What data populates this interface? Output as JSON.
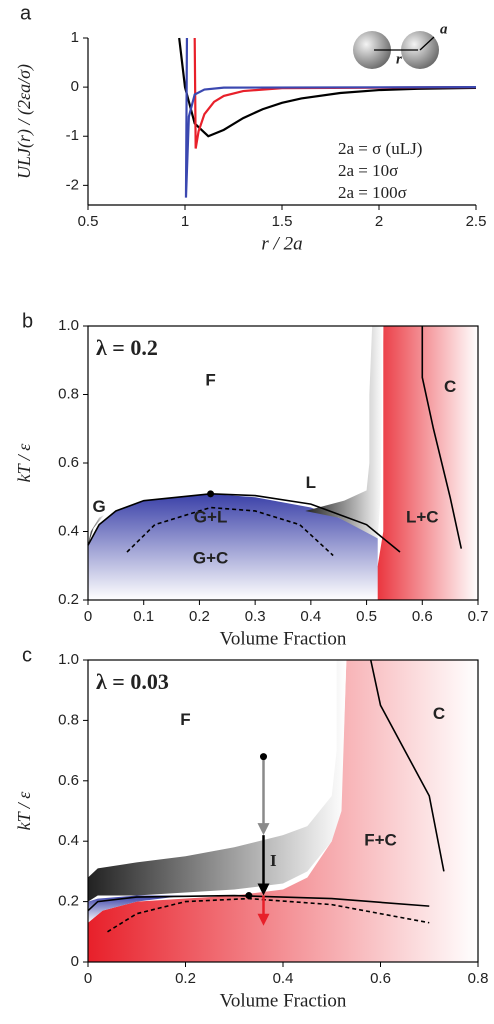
{
  "chart_data": [
    {
      "type": "line",
      "panel": "a",
      "xlabel": "r / 2a",
      "ylabel": "ULJ(r) / (2εa/σ)",
      "xlim": [
        0.5,
        2.5
      ],
      "xticks": [
        0.5,
        1,
        1.5,
        2,
        2.5
      ],
      "ylim": [
        -2.4,
        1
      ],
      "yticks": [
        1,
        0,
        -1,
        -2
      ],
      "inset_labels": [
        "r",
        "a"
      ],
      "series": [
        {
          "name": "2a = σ (uLJ)",
          "color": "#000000",
          "x": [
            0.97,
            1.0,
            1.05,
            1.12,
            1.2,
            1.3,
            1.4,
            1.5,
            1.6,
            1.8,
            2.0,
            2.2,
            2.5
          ],
          "y": [
            1.0,
            0,
            -0.74,
            -1.0,
            -0.87,
            -0.63,
            -0.45,
            -0.32,
            -0.23,
            -0.12,
            -0.06,
            -0.035,
            -0.016
          ]
        },
        {
          "name": "2a = 10σ",
          "color": "#e8202a",
          "x": [
            1.05,
            1.055,
            1.07,
            1.1,
            1.15,
            1.2,
            1.3,
            1.5,
            2.5
          ],
          "y": [
            1.0,
            -1.25,
            -0.9,
            -0.55,
            -0.3,
            -0.18,
            -0.08,
            -0.02,
            0
          ]
        },
        {
          "name": "2a = 100σ",
          "color": "#3b48b0",
          "x": [
            1.01,
            1.005,
            1.02,
            1.05,
            1.1,
            1.2,
            2.5
          ],
          "y": [
            1.0,
            -2.25,
            -0.6,
            -0.15,
            -0.05,
            -0.01,
            0
          ]
        }
      ]
    },
    {
      "type": "phase",
      "panel": "b",
      "lambda_label": "λ = 0.2",
      "xlabel": "Volume Fraction",
      "ylabel": "kT / ε",
      "xlim": [
        0,
        0.7
      ],
      "xticks": [
        0,
        0.1,
        0.2,
        0.3,
        0.4,
        0.5,
        0.6,
        0.7
      ],
      "ylim": [
        0.2,
        1
      ],
      "yticks": [
        0.2,
        0.4,
        0.6,
        0.8,
        {
          "value": 1,
          "label": "1.0"
        }
      ],
      "annotations": [
        "F",
        "G",
        "L",
        "G+L",
        "G+C",
        "L+C",
        "C"
      ],
      "regions": [
        {
          "color": "#e8202a",
          "fade": "right",
          "x": [
            0.5,
            0.5,
            0.52,
            0.53,
            0.53,
            0.7,
            0.7
          ],
          "y": [
            0.2,
            0.25,
            0.3,
            0.4,
            1.0,
            1.0,
            0.2
          ]
        },
        {
          "color": "#3a40a8",
          "fade": "down",
          "x": [
            0,
            0,
            0.02,
            0.05,
            0.1,
            0.22,
            0.3,
            0.4,
            0.45,
            0.5,
            0.52,
            0.52
          ],
          "y": [
            0.2,
            0.36,
            0.42,
            0.46,
            0.49,
            0.51,
            0.5,
            0.47,
            0.44,
            0.4,
            0.38,
            0.2
          ]
        },
        {
          "color": "#222222",
          "fade": "right",
          "x": [
            0.39,
            0.46,
            0.5,
            0.505,
            0.505,
            0.51,
            0.53,
            0.525,
            0.52,
            0.45
          ],
          "y": [
            0.46,
            0.49,
            0.52,
            0.6,
            0.8,
            1.0,
            1.0,
            0.5,
            0.38,
            0.44
          ]
        },
        {
          "color": "#222222",
          "fade": "right",
          "x": [
            0,
            0.005,
            0.02,
            0.03,
            0.01
          ],
          "y": [
            0.36,
            0.4,
            0.44,
            0.45,
            0.41
          ]
        }
      ],
      "curves": [
        {
          "color": "#000000",
          "dashed": false,
          "x": [
            0,
            0.02,
            0.05,
            0.1,
            0.22,
            0.3,
            0.4,
            0.5,
            0.56
          ],
          "y": [
            0.36,
            0.42,
            0.46,
            0.49,
            0.51,
            0.505,
            0.48,
            0.42,
            0.34
          ]
        },
        {
          "color": "#000000",
          "dashed": true,
          "x": [
            0.07,
            0.12,
            0.22,
            0.3,
            0.38,
            0.44
          ],
          "y": [
            0.34,
            0.42,
            0.47,
            0.46,
            0.42,
            0.33
          ]
        },
        {
          "color": "#000000",
          "dashed": false,
          "x": [
            0.6,
            0.6,
            0.62,
            0.65,
            0.67
          ],
          "y": [
            1.0,
            0.85,
            0.7,
            0.5,
            0.35
          ]
        }
      ],
      "points": {
        "x": [
          0.22
        ],
        "y": [
          0.51
        ]
      },
      "arrows": []
    },
    {
      "type": "phase",
      "panel": "c",
      "lambda_label": "λ = 0.03",
      "xlabel": "Volume Fraction",
      "ylabel": "kT / ε",
      "xlim": [
        0,
        0.8
      ],
      "xticks": [
        0,
        0.2,
        0.4,
        0.6,
        0.8
      ],
      "ylim": [
        0,
        1
      ],
      "yticks": [
        0,
        0.2,
        0.4,
        0.6,
        0.8,
        {
          "value": 1,
          "label": "1.0"
        }
      ],
      "annotations": [
        "F",
        "C",
        "F+C",
        "I"
      ],
      "regions": [
        {
          "color": "#e8202a",
          "fade": "right",
          "x": [
            0.53,
            0.8,
            0.8,
            0,
            0,
            0.03,
            0.1,
            0.3,
            0.4,
            0.45,
            0.5,
            0.52
          ],
          "y": [
            1.0,
            1.0,
            0,
            0,
            0.13,
            0.17,
            0.2,
            0.22,
            0.24,
            0.28,
            0.4,
            0.55
          ]
        },
        {
          "color": "#3a40a8",
          "fade": "down",
          "x": [
            0,
            0,
            0.02,
            0.1,
            0.2,
            0.1,
            0.03
          ],
          "y": [
            0.13,
            0.2,
            0.21,
            0.22,
            0.22,
            0.2,
            0.17
          ]
        },
        {
          "color": "#222222",
          "fade": "right",
          "x": [
            0,
            0.02,
            0.1,
            0.2,
            0.3,
            0.4,
            0.45,
            0.5,
            0.51,
            0.51,
            0.53,
            0.52,
            0.5,
            0.45,
            0.4,
            0.3,
            0.2,
            0.1,
            0.02,
            0
          ],
          "y": [
            0.28,
            0.31,
            0.33,
            0.35,
            0.38,
            0.42,
            0.45,
            0.55,
            0.7,
            1.0,
            1.0,
            0.5,
            0.4,
            0.3,
            0.26,
            0.24,
            0.23,
            0.22,
            0.22,
            0.2
          ]
        }
      ],
      "curves": [
        {
          "color": "#000000",
          "dashed": false,
          "x": [
            0,
            0.02,
            0.1,
            0.3,
            0.5,
            0.7
          ],
          "y": [
            0.17,
            0.2,
            0.215,
            0.22,
            0.21,
            0.185
          ]
        },
        {
          "color": "#000000",
          "dashed": true,
          "x": [
            0.04,
            0.1,
            0.2,
            0.33,
            0.5,
            0.7
          ],
          "y": [
            0.1,
            0.16,
            0.2,
            0.21,
            0.19,
            0.13
          ]
        },
        {
          "color": "#000000",
          "dashed": false,
          "x": [
            0.58,
            0.6,
            0.65,
            0.7,
            0.73
          ],
          "y": [
            1.0,
            0.85,
            0.7,
            0.55,
            0.3
          ]
        }
      ],
      "points": {
        "x": [
          0.36,
          0.33
        ],
        "y": [
          0.68,
          0.22
        ]
      },
      "arrows": [
        {
          "color": "#8a8a8a",
          "x": [
            0.36,
            0.36
          ],
          "y": [
            0.68,
            0.42
          ]
        },
        {
          "color": "#000000",
          "x": [
            0.36,
            0.36
          ],
          "y": [
            0.42,
            0.22
          ]
        },
        {
          "color": "#e8202a",
          "x": [
            0.36,
            0.36
          ],
          "y": [
            0.22,
            0.12
          ]
        }
      ]
    }
  ]
}
